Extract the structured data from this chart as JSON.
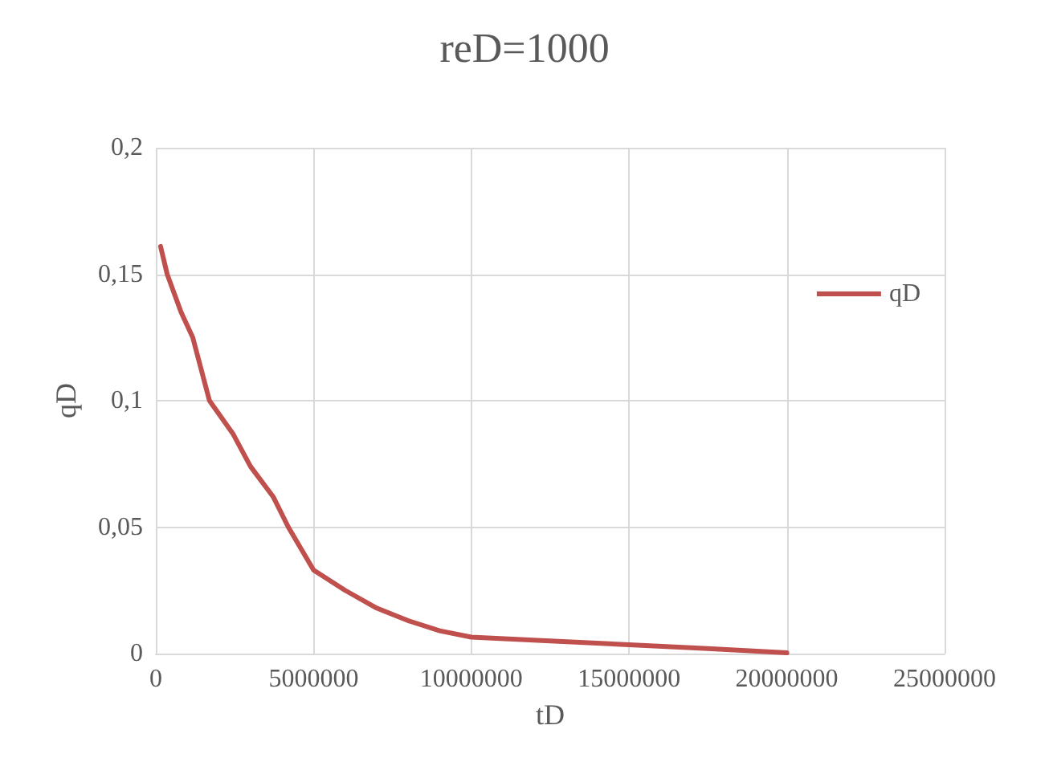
{
  "chart_data": {
    "type": "line",
    "title": "reD=1000",
    "xlabel": "tD",
    "ylabel": "qD",
    "series": [
      {
        "name": "qD",
        "color": "#c0504d",
        "x": [
          150000,
          360000,
          800000,
          1170000,
          1700000,
          2440000,
          3000000,
          3720000,
          4200000,
          5000000,
          6000000,
          7000000,
          8000000,
          9000000,
          10000000,
          12500000,
          15000000,
          17500000,
          20000000
        ],
        "values": [
          0.161,
          0.15,
          0.135,
          0.125,
          0.1,
          0.087,
          0.074,
          0.062,
          0.05,
          0.033,
          0.025,
          0.018,
          0.013,
          0.009,
          0.0065,
          0.005,
          0.0035,
          0.002,
          0.0003
        ]
      }
    ],
    "xlim": [
      0,
      25000000
    ],
    "xticks": [
      0,
      5000000,
      10000000,
      15000000,
      20000000,
      25000000
    ],
    "ylim": [
      0,
      0.2
    ],
    "yticks": [
      0,
      {
        "value": 0.05,
        "label": "0,05"
      },
      {
        "value": 0.1,
        "label": "0,1"
      },
      {
        "value": 0.15,
        "label": "0,15"
      },
      {
        "value": 0.2,
        "label": "0,2"
      }
    ],
    "grid": true,
    "legend": "right",
    "marker": "none",
    "line_style": "solid"
  }
}
